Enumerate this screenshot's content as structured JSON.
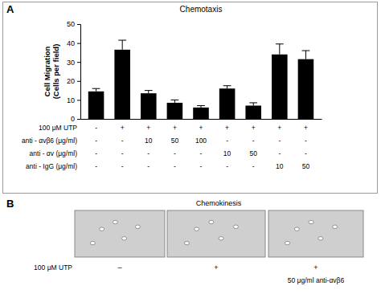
{
  "chart_data": {
    "type": "bar",
    "title": "Chemotaxis",
    "y_label": [
      "Cell Migration",
      "(Cells per field)"
    ],
    "categories": [
      null,
      null,
      null,
      null,
      null,
      null,
      null,
      null,
      null
    ],
    "values": [
      14.5,
      36.5,
      13.5,
      8.5,
      6,
      16,
      7,
      34,
      31.5
    ],
    "errors": [
      1.5,
      5,
      1.5,
      1.5,
      1,
      1.5,
      1.5,
      5.5,
      4.5
    ],
    "color": "#000000",
    "ylim": [
      0,
      50
    ],
    "yticks": [
      0,
      10,
      20,
      30,
      40,
      50
    ],
    "grid": false,
    "tick_labels": "y",
    "conditions": [
      {
        "label": "100 μM UTP",
        "values": [
          "-",
          "+",
          "+",
          "+",
          "+",
          "+",
          "+",
          "+",
          "+"
        ]
      },
      {
        "label": "anti - αvβ6 (μg/ml)",
        "values": [
          "-",
          "-",
          "10",
          "50",
          "100",
          "-",
          "-",
          "-",
          "-"
        ]
      },
      {
        "label": "anti - αv (μg/ml)",
        "values": [
          "-",
          "-",
          "-",
          "-",
          "-",
          "10",
          "50",
          "-",
          "-"
        ]
      },
      {
        "label": "anti - IgG (μg/ml)",
        "values": [
          "-",
          "-",
          "-",
          "-",
          "-",
          "-",
          "-",
          "10",
          "50"
        ]
      }
    ]
  },
  "figure": {
    "panel_a_label": "A",
    "panel_b": {
      "label": "B",
      "title": "Chemokinesis",
      "row_label": "100 μM UTP",
      "columns": [
        {
          "utp": "–"
        },
        {
          "utp": "+"
        },
        {
          "utp": "+",
          "treatment": "50 μg/ml anti-αvβ6"
        }
      ]
    }
  }
}
